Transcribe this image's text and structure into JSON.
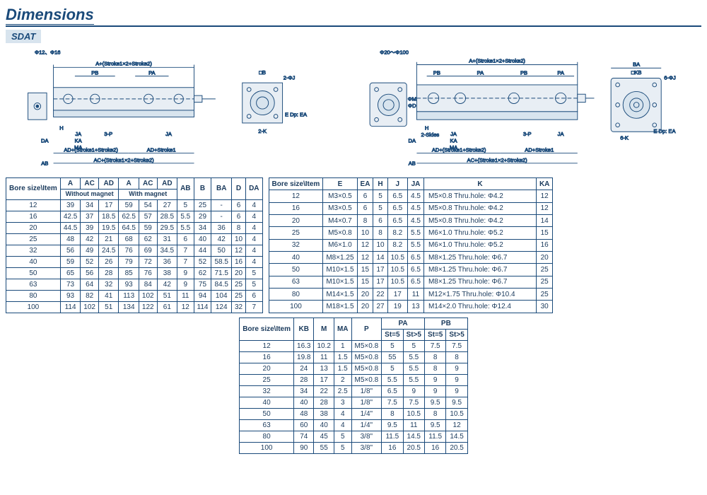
{
  "title": "Dimensions",
  "model": "SDAT",
  "range_left": "Φ12、Φ16",
  "range_right": "Φ20～Φ100",
  "drawing_labels": {
    "top_left": "A+(Stroke1×2+Stroke2)",
    "pb": "PB",
    "pa": "PA",
    "b": "□B",
    "kb": "□KB",
    "j2": "2-ΦJ",
    "j6": "6-ΦJ",
    "edp": "E Dp: EA",
    "h": "H",
    "ja": "JA",
    "ka": "KA",
    "ma": "MA",
    "p3": "3-P",
    "ad1": "AD+(Stroke1+Stroke2)",
    "ad2": "AD+Stroke1",
    "ac": "AC+(Stroke1×2+Stroke2)",
    "ab": "AB",
    "da": "DA",
    "ba": "BA",
    "d": "ΦD",
    "m": "ΦM",
    "k2": "2-K",
    "k6": "6-K",
    "sides": "2-Sides"
  },
  "table1": {
    "head_label": "Bore size\\Item",
    "cols_top": [
      "A",
      "AC",
      "AD",
      "A",
      "AC",
      "AD",
      "AB",
      "B",
      "BA",
      "D",
      "DA"
    ],
    "group1": "Without magnet",
    "group2": "With magnet",
    "rows": [
      [
        "12",
        "39",
        "34",
        "17",
        "59",
        "54",
        "27",
        "5",
        "25",
        "-",
        "6",
        "4"
      ],
      [
        "16",
        "42.5",
        "37",
        "18.5",
        "62.5",
        "57",
        "28.5",
        "5.5",
        "29",
        "-",
        "6",
        "4"
      ],
      [
        "20",
        "44.5",
        "39",
        "19.5",
        "64.5",
        "59",
        "29.5",
        "5.5",
        "34",
        "36",
        "8",
        "4"
      ],
      [
        "25",
        "48",
        "42",
        "21",
        "68",
        "62",
        "31",
        "6",
        "40",
        "42",
        "10",
        "4"
      ],
      [
        "32",
        "56",
        "49",
        "24.5",
        "76",
        "69",
        "34.5",
        "7",
        "44",
        "50",
        "12",
        "4"
      ],
      [
        "40",
        "59",
        "52",
        "26",
        "79",
        "72",
        "36",
        "7",
        "52",
        "58.5",
        "16",
        "4"
      ],
      [
        "50",
        "65",
        "56",
        "28",
        "85",
        "76",
        "38",
        "9",
        "62",
        "71.5",
        "20",
        "5"
      ],
      [
        "63",
        "73",
        "64",
        "32",
        "93",
        "84",
        "42",
        "9",
        "75",
        "84.5",
        "25",
        "5"
      ],
      [
        "80",
        "93",
        "82",
        "41",
        "113",
        "102",
        "51",
        "11",
        "94",
        "104",
        "25",
        "6"
      ],
      [
        "100",
        "114",
        "102",
        "51",
        "134",
        "122",
        "61",
        "12",
        "114",
        "124",
        "32",
        "7"
      ]
    ]
  },
  "table2": {
    "head_label": "Bore size\\Item",
    "cols": [
      "E",
      "EA",
      "H",
      "J",
      "JA",
      "K",
      "KA"
    ],
    "rows": [
      [
        "12",
        "M3×0.5",
        "6",
        "5",
        "6.5",
        "4.5",
        "M5×0.8 Thru.hole: Φ4.2",
        "12"
      ],
      [
        "16",
        "M3×0.5",
        "6",
        "5",
        "6.5",
        "4.5",
        "M5×0.8 Thru.hole: Φ4.2",
        "12"
      ],
      [
        "20",
        "M4×0.7",
        "8",
        "6",
        "6.5",
        "4.5",
        "M5×0.8 Thru.hole: Φ4.2",
        "14"
      ],
      [
        "25",
        "M5×0.8",
        "10",
        "8",
        "8.2",
        "5.5",
        "M6×1.0 Thru.hole: Φ5.2",
        "15"
      ],
      [
        "32",
        "M6×1.0",
        "12",
        "10",
        "8.2",
        "5.5",
        "M6×1.0 Thru.hole: Φ5.2",
        "16"
      ],
      [
        "40",
        "M8×1.25",
        "12",
        "14",
        "10.5",
        "6.5",
        "M8×1.25 Thru.hole: Φ6.7",
        "20"
      ],
      [
        "50",
        "M10×1.5",
        "15",
        "17",
        "10.5",
        "6.5",
        "M8×1.25 Thru.hole: Φ6.7",
        "25"
      ],
      [
        "63",
        "M10×1.5",
        "15",
        "17",
        "10.5",
        "6.5",
        "M8×1.25 Thru.hole: Φ6.7",
        "25"
      ],
      [
        "80",
        "M14×1.5",
        "20",
        "22",
        "17",
        "11",
        "M12×1.75 Thru.hole: Φ10.4",
        "25"
      ],
      [
        "100",
        "M18×1.5",
        "20",
        "27",
        "19",
        "13",
        "M14×2.0 Thru.hole: Φ12.4",
        "30"
      ]
    ]
  },
  "table3": {
    "head_label": "Bore size\\Item",
    "pa": "PA",
    "pb": "PB",
    "st5": "St=5",
    "stg5": "St>5",
    "cols": [
      "KB",
      "M",
      "MA",
      "P"
    ],
    "rows": [
      [
        "12",
        "16.3",
        "10.2",
        "1",
        "M5×0.8",
        "5",
        "5",
        "7.5",
        "7.5"
      ],
      [
        "16",
        "19.8",
        "11",
        "1.5",
        "M5×0.8",
        "55",
        "5.5",
        "8",
        "8"
      ],
      [
        "20",
        "24",
        "13",
        "1.5",
        "M5×0.8",
        "5",
        "5.5",
        "8",
        "9"
      ],
      [
        "25",
        "28",
        "17",
        "2",
        "M5×0.8",
        "5.5",
        "5.5",
        "9",
        "9"
      ],
      [
        "32",
        "34",
        "22",
        "2.5",
        "1/8\"",
        "6.5",
        "9",
        "9",
        "9"
      ],
      [
        "40",
        "40",
        "28",
        "3",
        "1/8\"",
        "7.5",
        "7.5",
        "9.5",
        "9.5"
      ],
      [
        "50",
        "48",
        "38",
        "4",
        "1/4\"",
        "8",
        "10.5",
        "8",
        "10.5"
      ],
      [
        "63",
        "60",
        "40",
        "4",
        "1/4\"",
        "9.5",
        "11",
        "9.5",
        "12"
      ],
      [
        "80",
        "74",
        "45",
        "5",
        "3/8\"",
        "11.5",
        "14.5",
        "11.5",
        "14.5"
      ],
      [
        "100",
        "90",
        "55",
        "5",
        "3/8\"",
        "16",
        "20.5",
        "16",
        "20.5"
      ]
    ]
  },
  "colors": {
    "line": "#1a4a7a",
    "text": "#1a3a5c",
    "fill": "#e8eef4",
    "fill2": "#d8e4ee"
  }
}
